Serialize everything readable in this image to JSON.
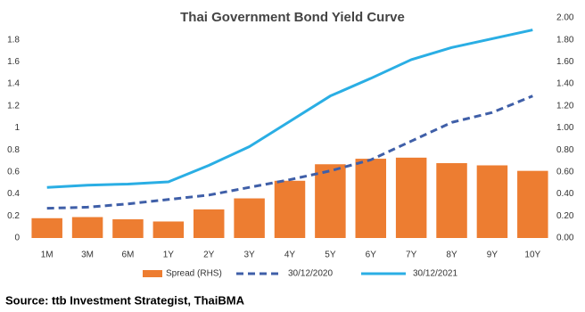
{
  "chart_data": {
    "type": "bar_line",
    "title": "Thai Government Bond Yield Curve",
    "source": "Source: ttb Investment Strategist, ThaiBMA",
    "categories": [
      "1M",
      "3M",
      "6M",
      "1Y",
      "2Y",
      "3Y",
      "4Y",
      "5Y",
      "6Y",
      "7Y",
      "8Y",
      "9Y",
      "10Y"
    ],
    "series": [
      {
        "name": "Spread (RHS)",
        "type": "bar",
        "axis": "y2",
        "color": "#ed7d31",
        "values": [
          0.18,
          0.19,
          0.17,
          0.15,
          0.26,
          0.36,
          0.52,
          0.67,
          0.72,
          0.73,
          0.68,
          0.66,
          0.61
        ]
      },
      {
        "name": "30/12/2020",
        "type": "line",
        "dashed": true,
        "color": "#3f5fa8",
        "values": [
          0.27,
          0.28,
          0.31,
          0.35,
          0.39,
          0.46,
          0.53,
          0.61,
          0.71,
          0.88,
          1.05,
          1.14,
          1.29
        ]
      },
      {
        "name": "30/12/2021",
        "type": "line",
        "dashed": false,
        "color": "#2aaee4",
        "values": [
          0.46,
          0.48,
          0.49,
          0.51,
          0.66,
          0.83,
          1.06,
          1.29,
          1.45,
          1.62,
          1.73,
          1.81,
          1.89
        ]
      }
    ],
    "ylim": [
      0,
      2
    ],
    "yticks": [
      0,
      0.2,
      0.4,
      0.6,
      0.8,
      1,
      1.2,
      1.4,
      1.6,
      1.8
    ],
    "y2lim": [
      0,
      2
    ],
    "y2ticks": [
      {
        "value": 0,
        "label": "0.00"
      },
      {
        "value": 0.2,
        "label": "0.20"
      },
      {
        "value": 0.4,
        "label": "0.40"
      },
      {
        "value": 0.6,
        "label": "0.60"
      },
      {
        "value": 0.8,
        "label": "0.80"
      },
      {
        "value": 1,
        "label": "1.00"
      },
      {
        "value": 1.2,
        "label": "1.20"
      },
      {
        "value": 1.4,
        "label": "1.40"
      },
      {
        "value": 1.6,
        "label": "1.60"
      },
      {
        "value": 1.8,
        "label": "1.80"
      },
      {
        "value": 2,
        "label": "2.00"
      }
    ],
    "legend": "bottom"
  }
}
